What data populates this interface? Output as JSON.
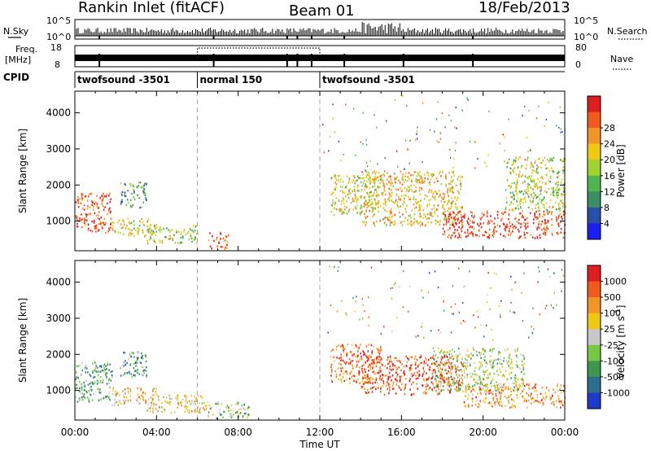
{
  "header": {
    "station": "Rankin Inlet (fitACF)",
    "beam": "Beam 01",
    "date": "18/Feb/2013"
  },
  "strip_labels": {
    "nsky": "N.Sky",
    "nsky_hi": "10^5",
    "nsky_lo": "10^0",
    "nsearch": "N.Search",
    "nsearch_hi": "10^5",
    "nsearch_lo": "10^0",
    "freq": "Freq.",
    "freq_unit": "[MHz]",
    "freq_hi": "18",
    "freq_lo": "8",
    "nave_hi": "80",
    "nave_lo": "0",
    "nave": "Nave",
    "cpid": "CPID"
  },
  "cpid_segments": [
    {
      "label": "twofsound -3501",
      "start": 0,
      "end": 6
    },
    {
      "label": "normal 150",
      "start": 6,
      "end": 12
    },
    {
      "label": "twofsound -3501",
      "start": 12,
      "end": 24
    }
  ],
  "chart_data": [
    {
      "type": "heatmap",
      "quantity": "Power",
      "xlabel": "",
      "ylabel": "Slant Range [km]",
      "xlim": [
        0,
        24
      ],
      "ylim": [
        180,
        4600
      ],
      "yticks": [
        "1000",
        "2000",
        "3000",
        "4000"
      ],
      "colorbar_label": "Power [dB]",
      "colorbar_ticks": [
        "4",
        "8",
        "12",
        "16",
        "20",
        "24",
        "28"
      ],
      "colorbar_colors": [
        "#1e1ef0",
        "#2850a8",
        "#3c8c64",
        "#50b450",
        "#a0d232",
        "#f0c814",
        "#f09628",
        "#f05a1e",
        "#dc1e1e"
      ],
      "scatter_regions": [
        {
          "t0": 0.0,
          "t1": 1.8,
          "r0": 700,
          "r1": 1800,
          "level": 0.9
        },
        {
          "t0": 1.8,
          "t1": 4.0,
          "r0": 600,
          "r1": 1100,
          "level": 0.6
        },
        {
          "t0": 2.2,
          "t1": 3.5,
          "r0": 1400,
          "r1": 2100,
          "level": 0.3
        },
        {
          "t0": 3.5,
          "t1": 6.0,
          "r0": 400,
          "r1": 900,
          "level": 0.5
        },
        {
          "t0": 6.5,
          "t1": 7.5,
          "r0": 250,
          "r1": 700,
          "level": 0.9
        },
        {
          "t0": 12.5,
          "t1": 15.0,
          "r0": 1200,
          "r1": 2300,
          "level": 0.55
        },
        {
          "t0": 14.0,
          "t1": 19.0,
          "r0": 900,
          "r1": 2400,
          "level": 0.65
        },
        {
          "t0": 18.0,
          "t1": 24.0,
          "r0": 550,
          "r1": 1300,
          "level": 0.95
        },
        {
          "t0": 21.0,
          "t1": 24.0,
          "r0": 1300,
          "r1": 2800,
          "level": 0.5
        }
      ]
    },
    {
      "type": "heatmap",
      "quantity": "Velocity",
      "xlabel": "Time UT",
      "ylabel": "Slant Range [km]",
      "xlim": [
        0,
        24
      ],
      "ylim": [
        180,
        4600
      ],
      "xticks": [
        "00:00",
        "04:00",
        "08:00",
        "12:00",
        "16:00",
        "20:00",
        "00:00"
      ],
      "yticks": [
        "1000",
        "2000",
        "3000",
        "4000"
      ],
      "colorbar_label": "Velocity [m s^-1]",
      "colorbar_ticks": [
        "1000",
        "500",
        "100",
        "25",
        "-25",
        "-100",
        "-500",
        "-1000"
      ],
      "colorbar_colors": [
        "#1e3cc8",
        "#2d6e8c",
        "#3c9650",
        "#78c846",
        "#c8c8c8",
        "#f0c814",
        "#f09628",
        "#f05a1e",
        "#dc1e1e"
      ],
      "scatter_regions": [
        {
          "t0": 0.0,
          "t1": 1.8,
          "r0": 700,
          "r1": 1800,
          "level": 0.3
        },
        {
          "t0": 1.8,
          "t1": 4.0,
          "r0": 600,
          "r1": 1100,
          "level": 0.65
        },
        {
          "t0": 2.2,
          "t1": 3.5,
          "r0": 1400,
          "r1": 2100,
          "level": 0.25
        },
        {
          "t0": 3.5,
          "t1": 6.5,
          "r0": 400,
          "r1": 900,
          "level": 0.6
        },
        {
          "t0": 6.5,
          "t1": 8.5,
          "r0": 250,
          "r1": 700,
          "level": 0.4
        },
        {
          "t0": 12.5,
          "t1": 15.0,
          "r0": 1200,
          "r1": 2300,
          "level": 0.85
        },
        {
          "t0": 14.0,
          "t1": 19.0,
          "r0": 900,
          "r1": 2000,
          "level": 0.9
        },
        {
          "t0": 17.5,
          "t1": 22.0,
          "r0": 1000,
          "r1": 2200,
          "level": 0.45
        },
        {
          "t0": 19.0,
          "t1": 24.0,
          "r0": 550,
          "r1": 1200,
          "level": 0.75
        }
      ]
    }
  ]
}
